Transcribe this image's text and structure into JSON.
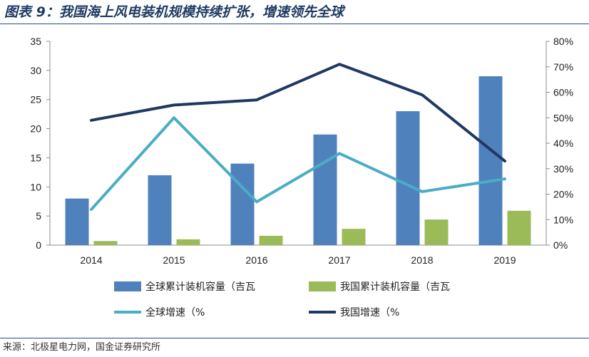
{
  "figure": {
    "title": "图表 9：我国海上风电装机规模持续扩张，增速领先全球",
    "source": "来源：北极星电力网，国金证券研究所"
  },
  "colors": {
    "global_capacity": "#4f81bd",
    "china_capacity": "#9bbb59",
    "global_growth": "#4bacc6",
    "china_growth": "#1f3864",
    "title": "#1f3b63"
  },
  "chart_data": {
    "type": "bar",
    "categories": [
      "2014",
      "2015",
      "2016",
      "2017",
      "2018",
      "2019"
    ],
    "series": [
      {
        "name": "全球累计装机容量（吉瓦",
        "type": "bar",
        "axis": "left",
        "values": [
          8,
          12,
          14,
          19,
          23,
          29
        ]
      },
      {
        "name": "我国累计装机容量（吉瓦",
        "type": "bar",
        "axis": "left",
        "values": [
          0.7,
          1.0,
          1.6,
          2.8,
          4.4,
          5.9
        ]
      },
      {
        "name": "全球增速（%",
        "type": "line",
        "axis": "right",
        "values": [
          14,
          50,
          17,
          36,
          21,
          26
        ]
      },
      {
        "name": "我国增速（%",
        "type": "line",
        "axis": "right",
        "values": [
          49,
          55,
          57,
          71,
          59,
          33
        ]
      }
    ],
    "y_left": {
      "range": [
        0,
        35
      ],
      "ticks": [
        "0",
        "5",
        "10",
        "15",
        "20",
        "25",
        "30",
        "35"
      ]
    },
    "y_right": {
      "range": [
        0,
        80
      ],
      "ticks": [
        "0%",
        "10%",
        "20%",
        "30%",
        "40%",
        "50%",
        "60%",
        "70%",
        "80%"
      ]
    },
    "grid": false,
    "legend_position": "bottom"
  }
}
